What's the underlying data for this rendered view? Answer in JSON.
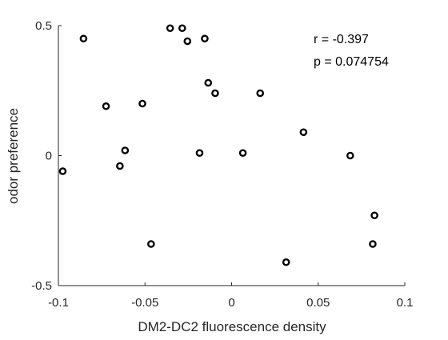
{
  "chart_data": {
    "type": "scatter",
    "xlabel": "DM2-DC2 fluorescence density",
    "ylabel": "odor preference",
    "xlim": [
      -0.1,
      0.1
    ],
    "ylim": [
      -0.5,
      0.5
    ],
    "xticks": [
      "-0.1",
      "-0.05",
      "0",
      "0.05",
      "0.1"
    ],
    "yticks": [
      "-0.5",
      "0",
      "0.5"
    ],
    "grid": false,
    "annotations": [
      "r = -0.397",
      "p = 0.074754"
    ],
    "marker_color": "#000000",
    "points": [
      {
        "x": -0.0975,
        "y": -0.06
      },
      {
        "x": -0.0855,
        "y": 0.45
      },
      {
        "x": -0.0725,
        "y": 0.19
      },
      {
        "x": -0.0645,
        "y": -0.04
      },
      {
        "x": -0.0615,
        "y": 0.02
      },
      {
        "x": -0.0515,
        "y": 0.2
      },
      {
        "x": -0.0465,
        "y": -0.34
      },
      {
        "x": -0.0355,
        "y": 0.49
      },
      {
        "x": -0.0285,
        "y": 0.49
      },
      {
        "x": -0.0255,
        "y": 0.44
      },
      {
        "x": -0.0185,
        "y": 0.01
      },
      {
        "x": -0.0155,
        "y": 0.45
      },
      {
        "x": -0.0135,
        "y": 0.28
      },
      {
        "x": -0.0095,
        "y": 0.24
      },
      {
        "x": 0.0065,
        "y": 0.01
      },
      {
        "x": 0.0165,
        "y": 0.24
      },
      {
        "x": 0.0315,
        "y": -0.41
      },
      {
        "x": 0.0415,
        "y": 0.09
      },
      {
        "x": 0.0685,
        "y": 0.0
      },
      {
        "x": 0.0815,
        "y": -0.34
      },
      {
        "x": 0.0825,
        "y": -0.23
      }
    ]
  }
}
